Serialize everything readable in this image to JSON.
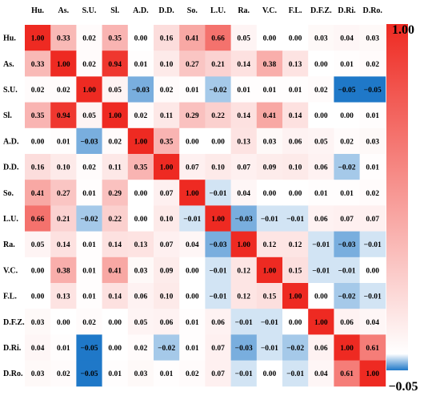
{
  "chart_data": {
    "type": "heatmap",
    "title": "",
    "xlabel": "",
    "ylabel": "",
    "row_labels": [
      "Hu.",
      "As.",
      "S.U.",
      "Sl.",
      "A.D.",
      "D.D.",
      "So.",
      "L.U.",
      "Ra.",
      "V.C.",
      "F.L.",
      "D.F.Z.",
      "D.Ri.",
      "D.Ro."
    ],
    "col_labels": [
      "Hu.",
      "As.",
      "S.U.",
      "Sl.",
      "A.D.",
      "D.D.",
      "So.",
      "L.U.",
      "Ra.",
      "V.C.",
      "F.L.",
      "D.F.Z.",
      "D.Ri.",
      "D.Ro."
    ],
    "values": [
      [
        "1.00",
        "0.33",
        "0.02",
        "0.35",
        "0.00",
        "0.16",
        "0.41",
        "0.66",
        "0.05",
        "0.00",
        "0.00",
        "0.03",
        "0.04",
        "0.03"
      ],
      [
        "0.33",
        "1.00",
        "0.02",
        "0.94",
        "0.01",
        "0.10",
        "0.27",
        "0.21",
        "0.14",
        "0.38",
        "0.13",
        "0.00",
        "0.01",
        "0.02"
      ],
      [
        "0.02",
        "0.02",
        "1.00",
        "0.05",
        "−0.03",
        "0.02",
        "0.01",
        "−0.02",
        "0.01",
        "0.01",
        "0.01",
        "0.02",
        "−0.05",
        "−0.05"
      ],
      [
        "0.35",
        "0.94",
        "0.05",
        "1.00",
        "0.02",
        "0.11",
        "0.29",
        "0.22",
        "0.14",
        "0.41",
        "0.14",
        "0.00",
        "0.00",
        "0.01"
      ],
      [
        "0.00",
        "0.01",
        "−0.03",
        "0.02",
        "1.00",
        "0.35",
        "0.00",
        "0.00",
        "0.13",
        "0.03",
        "0.06",
        "0.05",
        "0.02",
        "0.03"
      ],
      [
        "0.16",
        "0.10",
        "0.02",
        "0.11",
        "0.35",
        "1.00",
        "0.07",
        "0.10",
        "0.07",
        "0.09",
        "0.10",
        "0.06",
        "−0.02",
        "0.01"
      ],
      [
        "0.41",
        "0.27",
        "0.01",
        "0.29",
        "0.00",
        "0.07",
        "1.00",
        "−0.01",
        "0.04",
        "0.00",
        "0.00",
        "0.01",
        "0.01",
        "0.02"
      ],
      [
        "0.66",
        "0.21",
        "−0.02",
        "0.22",
        "0.00",
        "0.10",
        "−0.01",
        "1.00",
        "−0.03",
        "−0.01",
        "−0.01",
        "0.06",
        "0.07",
        "0.07"
      ],
      [
        "0.05",
        "0.14",
        "0.01",
        "0.14",
        "0.13",
        "0.07",
        "0.04",
        "−0.03",
        "1.00",
        "0.12",
        "0.12",
        "−0.01",
        "−0.03",
        "−0.01"
      ],
      [
        "0.00",
        "0.38",
        "0.01",
        "0.41",
        "0.03",
        "0.09",
        "0.00",
        "−0.01",
        "0.12",
        "1.00",
        "0.15",
        "−0.01",
        "−0.01",
        "0.00"
      ],
      [
        "0.00",
        "0.13",
        "0.01",
        "0.14",
        "0.06",
        "0.10",
        "0.00",
        "−0.01",
        "0.12",
        "0.15",
        "1.00",
        "0.00",
        "−0.02",
        "−0.01"
      ],
      [
        "0.03",
        "0.00",
        "0.02",
        "0.00",
        "0.05",
        "0.06",
        "0.01",
        "0.06",
        "−0.01",
        "−0.01",
        "0.00",
        "1.00",
        "0.06",
        "0.04"
      ],
      [
        "0.04",
        "0.01",
        "−0.05",
        "0.00",
        "0.02",
        "−0.02",
        "0.01",
        "0.07",
        "−0.03",
        "−0.01",
        "−0.02",
        "0.06",
        "1.00",
        "0.61"
      ],
      [
        "0.03",
        "0.02",
        "−0.05",
        "0.01",
        "0.03",
        "0.01",
        "0.02",
        "0.07",
        "−0.01",
        "0.00",
        "−0.01",
        "0.04",
        "0.61",
        "1.00"
      ]
    ],
    "colorbar": {
      "min_label": "−0.05",
      "max_label": "1.00",
      "min": -0.05,
      "max": 1.0,
      "colors": {
        "negative": "#1f78c8",
        "neutral": "#ffffff",
        "positive": "#ee2a22"
      }
    }
  }
}
